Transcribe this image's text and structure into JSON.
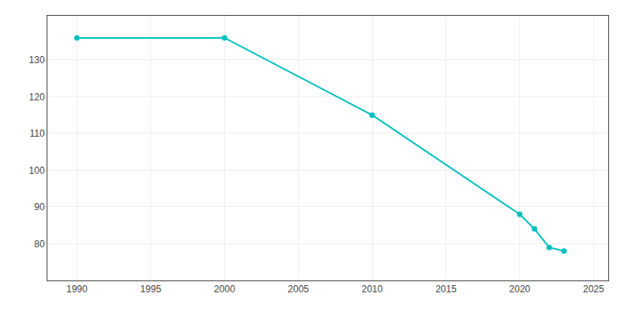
{
  "chart_data": {
    "type": "line",
    "x": [
      1990,
      2000,
      2010,
      2020,
      2021,
      2022,
      2023
    ],
    "values": [
      136,
      136,
      115,
      88,
      84,
      79,
      78
    ],
    "color": "#00BFBF",
    "marker": "circle",
    "line_style": "solid",
    "xlim": [
      1988,
      2026
    ],
    "ylim": [
      70,
      142
    ],
    "xticks": [
      1990,
      1995,
      2000,
      2005,
      2010,
      2015,
      2020,
      2025
    ],
    "yticks": [
      80,
      90,
      100,
      110,
      120,
      130
    ],
    "grid": true
  }
}
